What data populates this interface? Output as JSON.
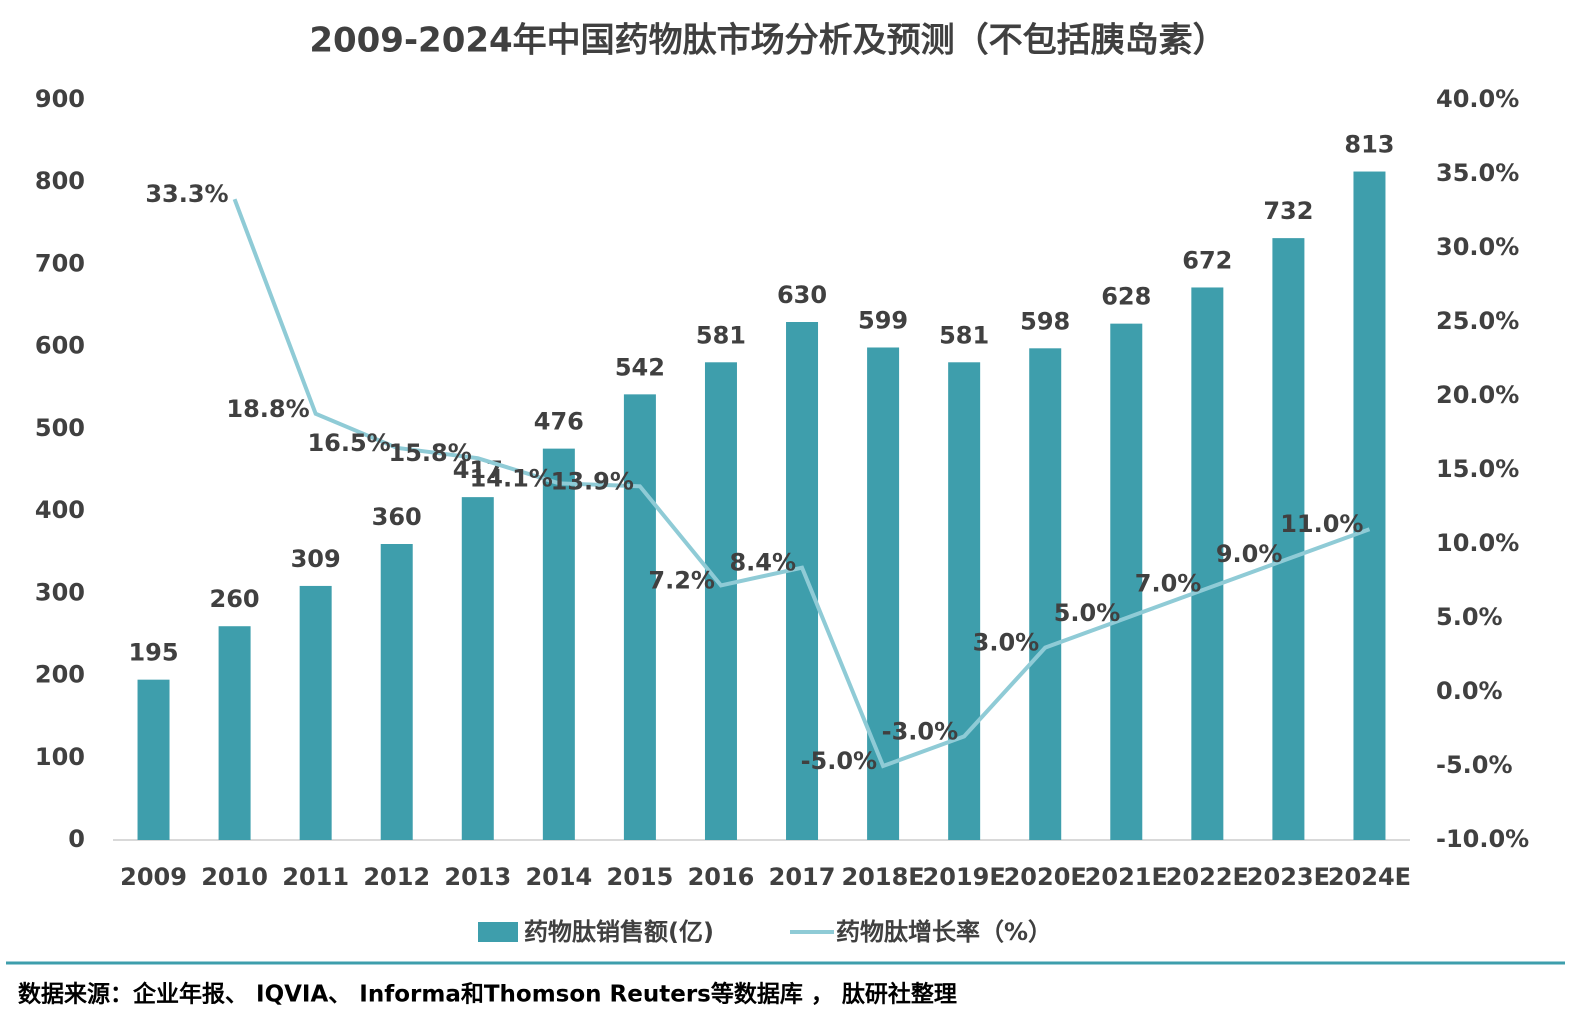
{
  "chart_data": {
    "type": "bar_line",
    "title": "2009-2024年中国药物肽市场分析及预测（不包括胰岛素）",
    "categories": [
      "2009",
      "2010",
      "2011",
      "2012",
      "2013",
      "2014",
      "2015",
      "2016",
      "2017",
      "2018E",
      "2019E",
      "2020E",
      "2021E",
      "2022E",
      "2023E",
      "2024E"
    ],
    "series": [
      {
        "name": "药物肽销售额(亿)",
        "type": "bar",
        "color": "#3e9eac",
        "values": [
          195,
          260,
          309,
          360,
          417,
          476,
          542,
          581,
          630,
          599,
          581,
          598,
          628,
          672,
          732,
          813
        ]
      },
      {
        "name": "药物肽增长率（%）",
        "type": "line",
        "axis": "y2",
        "color": "#8fcbd6",
        "values": [
          null,
          33.3,
          18.8,
          16.5,
          15.8,
          14.1,
          13.9,
          7.2,
          8.4,
          -5.0,
          -3.0,
          3.0,
          5.0,
          7.0,
          9.0,
          11.0
        ],
        "value_labels": [
          null,
          "33.3%",
          "18.8%",
          "16.5%",
          "15.8%",
          "14.1%",
          "13.9%",
          "7.2%",
          "8.4%",
          "-5.0%",
          "-3.0%",
          "3.0%",
          "5.0%",
          "7.0%",
          "9.0%",
          "11.0%"
        ]
      }
    ],
    "ylim": [
      0,
      900
    ],
    "yticks": [
      0,
      100,
      200,
      300,
      400,
      500,
      600,
      700,
      800,
      900
    ],
    "y2lim": [
      -10,
      40
    ],
    "y2ticks": [
      {
        "value": -10,
        "label": "-10.0%"
      },
      {
        "value": -5,
        "label": "-5.0%"
      },
      {
        "value": 0,
        "label": "0.0%"
      },
      {
        "value": 5,
        "label": "5.0%"
      },
      {
        "value": 10,
        "label": "10.0%"
      },
      {
        "value": 15,
        "label": "15.0%"
      },
      {
        "value": 20,
        "label": "20.0%"
      },
      {
        "value": 25,
        "label": "25.0%"
      },
      {
        "value": 30,
        "label": "30.0%"
      },
      {
        "value": 35,
        "label": "35.0%"
      },
      {
        "value": 40,
        "label": "40.0%"
      }
    ],
    "legend": "bottom"
  },
  "footer": "数据来源：企业年报、 IQVIA、 Informa和Thomson Reuters等数据库 ， 肽研社整理"
}
